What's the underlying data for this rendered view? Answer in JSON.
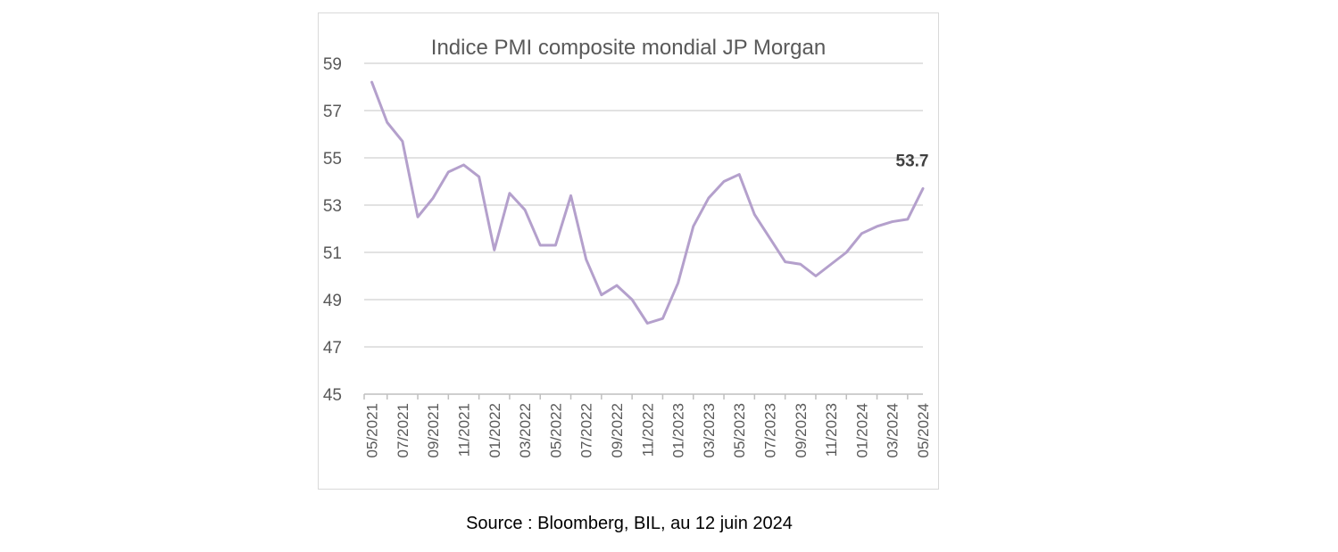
{
  "source": "Source : Bloomberg, BIL, au 12 juin 2024",
  "chart_data": {
    "type": "line",
    "title": "Indice PMI composite mondial JP Morgan",
    "xlabel": "",
    "ylabel": "",
    "ylim": [
      45,
      59
    ],
    "yticks": [
      45,
      47,
      49,
      51,
      53,
      55,
      57,
      59
    ],
    "grid": true,
    "x": [
      "05/2021",
      "06/2021",
      "07/2021",
      "08/2021",
      "09/2021",
      "10/2021",
      "11/2021",
      "12/2021",
      "01/2022",
      "02/2022",
      "03/2022",
      "04/2022",
      "05/2022",
      "06/2022",
      "07/2022",
      "08/2022",
      "09/2022",
      "10/2022",
      "11/2022",
      "12/2022",
      "01/2023",
      "02/2023",
      "03/2023",
      "04/2023",
      "05/2023",
      "06/2023",
      "07/2023",
      "08/2023",
      "09/2023",
      "10/2023",
      "11/2023",
      "12/2023",
      "01/2024",
      "02/2024",
      "03/2024",
      "04/2024",
      "05/2024"
    ],
    "xtick_labels": [
      "05/2021",
      "07/2021",
      "09/2021",
      "11/2021",
      "01/2022",
      "03/2022",
      "05/2022",
      "07/2022",
      "09/2022",
      "11/2022",
      "01/2023",
      "03/2023",
      "05/2023",
      "07/2023",
      "09/2023",
      "11/2023",
      "01/2024",
      "03/2024",
      "05/2024"
    ],
    "series": [
      {
        "color": "#b4a0cc",
        "values": [
          58.2,
          56.5,
          55.7,
          52.5,
          53.3,
          54.4,
          54.7,
          54.2,
          51.1,
          53.5,
          52.8,
          51.3,
          51.3,
          53.4,
          50.7,
          49.2,
          49.6,
          49.0,
          48.0,
          48.2,
          49.7,
          52.1,
          53.3,
          54.0,
          54.3,
          52.6,
          51.6,
          50.6,
          50.5,
          50.0,
          50.5,
          51.0,
          51.8,
          52.1,
          52.3,
          52.4,
          53.7
        ]
      }
    ],
    "annotation": "53.7"
  }
}
